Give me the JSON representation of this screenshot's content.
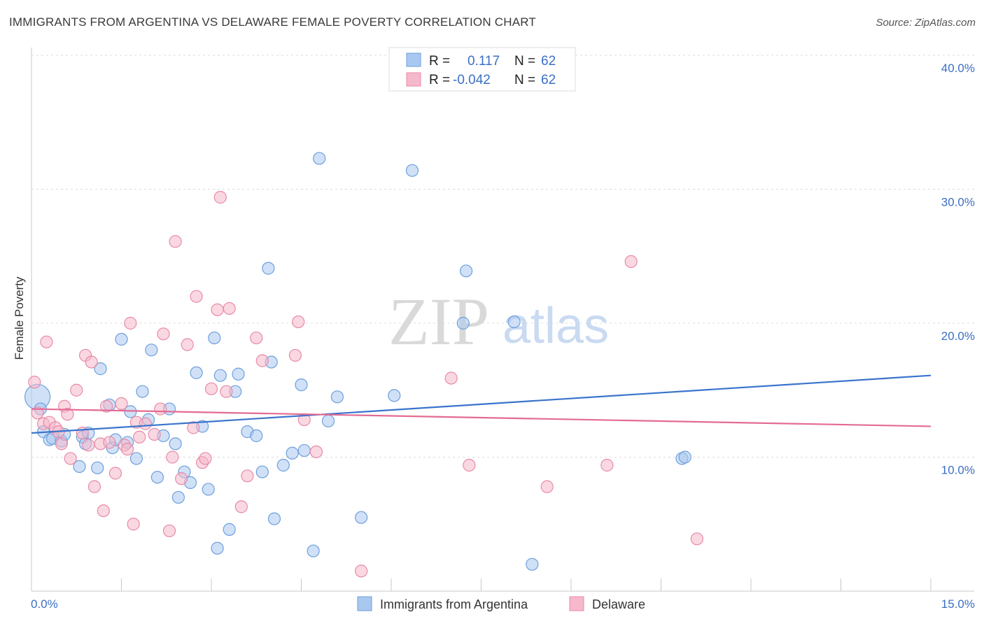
{
  "header": {
    "title": "IMMIGRANTS FROM ARGENTINA VS DELAWARE FEMALE POVERTY CORRELATION CHART",
    "source": "Source: ZipAtlas.com"
  },
  "watermark": {
    "zip": "ZIP",
    "atlas": "atlas"
  },
  "legend_box": {
    "rows": [
      {
        "r_label": "R =",
        "r_value": "0.117",
        "n_label": "N =",
        "n_value": "62",
        "color": "#a9c8f0"
      },
      {
        "r_label": "R =",
        "r_value": "-0.042",
        "n_label": "N =",
        "n_value": "62",
        "color": "#f6b8cb"
      }
    ]
  },
  "chart_data": {
    "type": "scatter",
    "ylabel": "Female Poverty",
    "xlim": [
      0,
      15
    ],
    "ylim": [
      0,
      40
    ],
    "x_tick_labels": [
      "0.0%",
      "15.0%"
    ],
    "y_ticks": [
      10,
      20,
      30,
      40
    ],
    "y_tick_labels": [
      "10.0%",
      "20.0%",
      "30.0%",
      "40.0%"
    ],
    "grid": true,
    "legend_position": "bottom",
    "series": [
      {
        "name": "Immigrants from Argentina",
        "color": "#a9c8f0",
        "stroke": "#6e9fdc",
        "trend_color": "#3a74cc",
        "trend": {
          "x": [
            0,
            15
          ],
          "y": [
            11.8,
            16.1
          ]
        },
        "points": [
          {
            "x": 0.1,
            "y": 14.5,
            "big": true
          },
          {
            "x": 0.15,
            "y": 13.6
          },
          {
            "x": 0.2,
            "y": 11.9
          },
          {
            "x": 0.3,
            "y": 11.3
          },
          {
            "x": 0.35,
            "y": 11.4
          },
          {
            "x": 0.5,
            "y": 11.2
          },
          {
            "x": 0.55,
            "y": 11.7
          },
          {
            "x": 0.8,
            "y": 9.3
          },
          {
            "x": 0.85,
            "y": 11.5
          },
          {
            "x": 0.9,
            "y": 11.0
          },
          {
            "x": 0.95,
            "y": 11.8
          },
          {
            "x": 1.1,
            "y": 9.2
          },
          {
            "x": 1.15,
            "y": 16.6
          },
          {
            "x": 1.3,
            "y": 13.9
          },
          {
            "x": 1.35,
            "y": 10.7
          },
          {
            "x": 1.4,
            "y": 11.3
          },
          {
            "x": 1.5,
            "y": 18.8
          },
          {
            "x": 1.6,
            "y": 11.1
          },
          {
            "x": 1.65,
            "y": 13.4
          },
          {
            "x": 1.75,
            "y": 9.9
          },
          {
            "x": 1.85,
            "y": 14.9
          },
          {
            "x": 1.95,
            "y": 12.8
          },
          {
            "x": 2.0,
            "y": 18.0
          },
          {
            "x": 2.1,
            "y": 8.5
          },
          {
            "x": 2.2,
            "y": 11.6
          },
          {
            "x": 2.3,
            "y": 13.6
          },
          {
            "x": 2.4,
            "y": 11.0
          },
          {
            "x": 2.45,
            "y": 7.0
          },
          {
            "x": 2.55,
            "y": 8.9
          },
          {
            "x": 2.65,
            "y": 8.1
          },
          {
            "x": 2.75,
            "y": 16.3
          },
          {
            "x": 2.85,
            "y": 12.3
          },
          {
            "x": 2.95,
            "y": 7.6
          },
          {
            "x": 3.05,
            "y": 18.9
          },
          {
            "x": 3.1,
            "y": 3.2
          },
          {
            "x": 3.15,
            "y": 16.1
          },
          {
            "x": 3.3,
            "y": 4.6
          },
          {
            "x": 3.4,
            "y": 14.9
          },
          {
            "x": 3.45,
            "y": 16.2
          },
          {
            "x": 3.6,
            "y": 11.9
          },
          {
            "x": 3.75,
            "y": 11.6
          },
          {
            "x": 3.85,
            "y": 8.9
          },
          {
            "x": 3.95,
            "y": 24.1
          },
          {
            "x": 4.0,
            "y": 17.1
          },
          {
            "x": 4.05,
            "y": 5.4
          },
          {
            "x": 4.2,
            "y": 9.4
          },
          {
            "x": 4.35,
            "y": 10.3
          },
          {
            "x": 4.5,
            "y": 15.4
          },
          {
            "x": 4.55,
            "y": 10.5
          },
          {
            "x": 4.7,
            "y": 3.0
          },
          {
            "x": 4.8,
            "y": 32.3
          },
          {
            "x": 4.95,
            "y": 12.7
          },
          {
            "x": 5.1,
            "y": 14.5
          },
          {
            "x": 5.5,
            "y": 5.5
          },
          {
            "x": 6.05,
            "y": 14.6
          },
          {
            "x": 6.35,
            "y": 31.4
          },
          {
            "x": 7.2,
            "y": 20.0
          },
          {
            "x": 7.25,
            "y": 23.9
          },
          {
            "x": 8.05,
            "y": 20.1
          },
          {
            "x": 8.35,
            "y": 2.0
          },
          {
            "x": 10.85,
            "y": 9.9
          },
          {
            "x": 10.9,
            "y": 10.0
          }
        ]
      },
      {
        "name": "Delaware",
        "color": "#f6b8cb",
        "stroke": "#e88aa7",
        "trend_color": "#e36b94",
        "trend": {
          "x": [
            0,
            15
          ],
          "y": [
            13.6,
            12.3
          ]
        },
        "points": [
          {
            "x": 0.05,
            "y": 15.6
          },
          {
            "x": 0.1,
            "y": 13.3
          },
          {
            "x": 0.2,
            "y": 12.5
          },
          {
            "x": 0.25,
            "y": 18.6
          },
          {
            "x": 0.3,
            "y": 12.6
          },
          {
            "x": 0.4,
            "y": 12.2
          },
          {
            "x": 0.45,
            "y": 11.9
          },
          {
            "x": 0.5,
            "y": 11.0
          },
          {
            "x": 0.55,
            "y": 13.8
          },
          {
            "x": 0.6,
            "y": 13.2
          },
          {
            "x": 0.65,
            "y": 9.9
          },
          {
            "x": 0.75,
            "y": 15.0
          },
          {
            "x": 0.85,
            "y": 11.8
          },
          {
            "x": 0.9,
            "y": 17.6
          },
          {
            "x": 0.95,
            "y": 10.9
          },
          {
            "x": 1.0,
            "y": 17.1
          },
          {
            "x": 1.05,
            "y": 7.8
          },
          {
            "x": 1.15,
            "y": 11.0
          },
          {
            "x": 1.2,
            "y": 6.0
          },
          {
            "x": 1.25,
            "y": 13.8
          },
          {
            "x": 1.3,
            "y": 11.1
          },
          {
            "x": 1.4,
            "y": 8.8
          },
          {
            "x": 1.5,
            "y": 14.0
          },
          {
            "x": 1.55,
            "y": 10.9
          },
          {
            "x": 1.6,
            "y": 10.6
          },
          {
            "x": 1.65,
            "y": 20.0
          },
          {
            "x": 1.7,
            "y": 5.0
          },
          {
            "x": 1.75,
            "y": 12.6
          },
          {
            "x": 1.8,
            "y": 11.5
          },
          {
            "x": 1.9,
            "y": 12.5
          },
          {
            "x": 2.05,
            "y": 11.7
          },
          {
            "x": 2.15,
            "y": 13.6
          },
          {
            "x": 2.2,
            "y": 19.2
          },
          {
            "x": 2.3,
            "y": 4.5
          },
          {
            "x": 2.35,
            "y": 10.0
          },
          {
            "x": 2.4,
            "y": 26.1
          },
          {
            "x": 2.5,
            "y": 8.4
          },
          {
            "x": 2.6,
            "y": 18.4
          },
          {
            "x": 2.7,
            "y": 12.2
          },
          {
            "x": 2.75,
            "y": 22.0
          },
          {
            "x": 2.85,
            "y": 9.6
          },
          {
            "x": 2.9,
            "y": 9.9
          },
          {
            "x": 3.0,
            "y": 15.1
          },
          {
            "x": 3.1,
            "y": 21.0
          },
          {
            "x": 3.15,
            "y": 29.4
          },
          {
            "x": 3.25,
            "y": 14.9
          },
          {
            "x": 3.3,
            "y": 21.1
          },
          {
            "x": 3.5,
            "y": 6.3
          },
          {
            "x": 3.6,
            "y": 8.6
          },
          {
            "x": 3.75,
            "y": 18.9
          },
          {
            "x": 3.85,
            "y": 17.2
          },
          {
            "x": 4.4,
            "y": 17.6
          },
          {
            "x": 4.45,
            "y": 20.1
          },
          {
            "x": 4.55,
            "y": 12.8
          },
          {
            "x": 4.75,
            "y": 10.4
          },
          {
            "x": 5.5,
            "y": 1.5
          },
          {
            "x": 7.0,
            "y": 15.9
          },
          {
            "x": 7.3,
            "y": 9.4
          },
          {
            "x": 8.6,
            "y": 7.8
          },
          {
            "x": 9.6,
            "y": 9.4
          },
          {
            "x": 10.0,
            "y": 24.6
          },
          {
            "x": 11.1,
            "y": 3.9
          }
        ]
      }
    ]
  }
}
